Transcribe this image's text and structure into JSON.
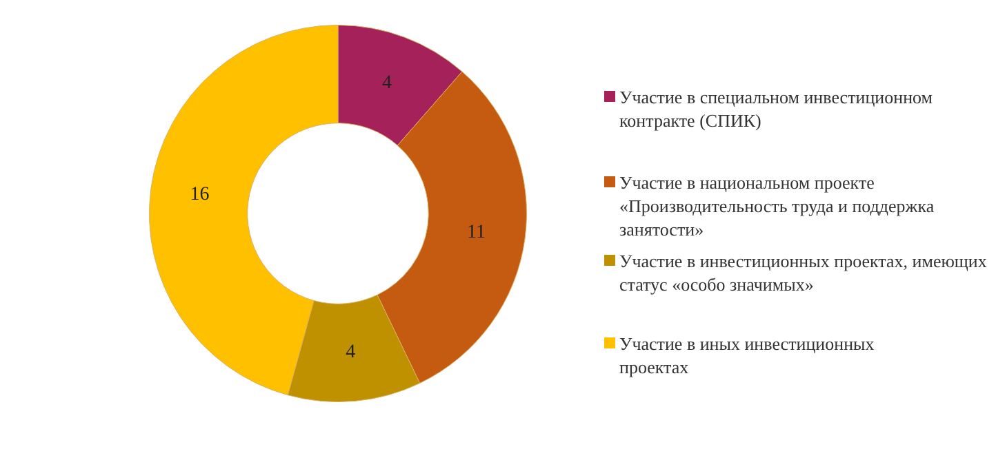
{
  "chart_data": {
    "type": "donut",
    "categories": [
      "Участие в специальном инвестиционном контракте (СПИК)",
      "Участие в национальном проекте «Производительность труда и поддержка занятости»",
      "Участие в  инвестиционных проектах, имеющих статус «особо значимых»",
      "Участие в иных  инвестиционных проектах"
    ],
    "values": [
      4,
      11,
      4,
      16
    ],
    "colors": [
      "#a5215a",
      "#c55a11",
      "#bf9000",
      "#ffc000"
    ],
    "data_labels": true,
    "legend": "right"
  }
}
